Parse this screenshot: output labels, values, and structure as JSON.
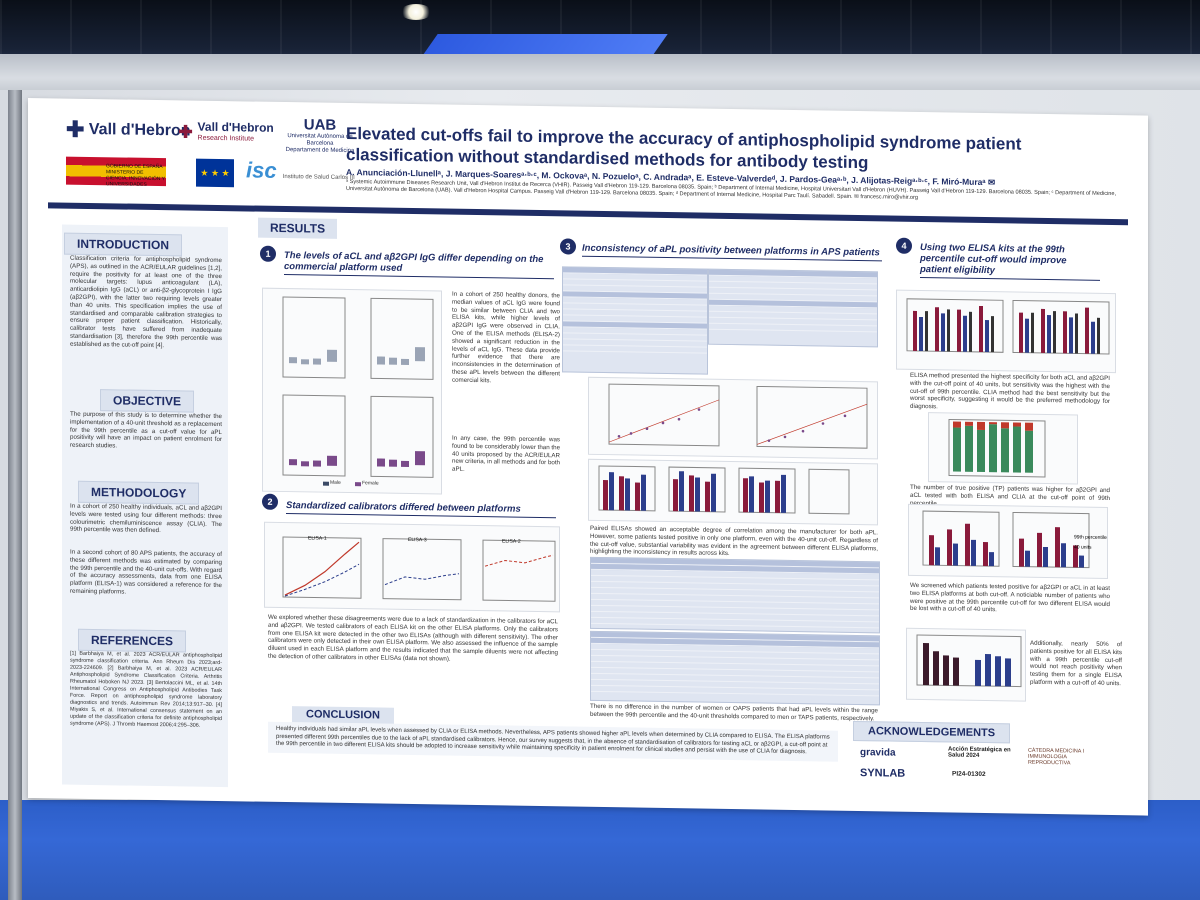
{
  "poster": {
    "title": "Elevated cut-offs fail to improve the accuracy of antiphospholipid syndrome patient classification without standardised methods for antibody testing",
    "authors": "A. Anunciación-Llunellᵃ, J. Marques-Soaresᵃ·ᵇ·ᶜ, M. Ockovaᵃ, N. Pozueloᵃ, C. Andradaᵃ, E. Esteve-Valverdeᵈ, J. Pardos-Geaᵃ·ᵇ, J. Alijotas-Reigᵃ·ᵇ·ᶜ, F. Miró-Muraᵃ ✉",
    "affiliations": "ᵃ Systemic Autoimmune Diseases Research Unit, Vall d'Hebron Institut de Recerca (VHIR). Passeig Vall d'Hebron 119-129. Barcelona 08035. Spain; ᵇ Department of Internal Medicine, Hospital Universitari Vall d'Hebron (HUVH). Passeig Vall d'Hebron 119-129. Barcelona 08035. Spain; ᶜ Department of Medicine, Universitat Autònoma de Barcelona (UAB). Vall d'Hebron Hospital Campus. Passeig Vall d'Hebron 119-129. Barcelona 08035. Spain; ᵈ Department of Internal Medicine, Hospital Parc Taulí. Sabadell. Spain. ✉ francesc.miro@vhir.org",
    "logos": {
      "vall_hebron": "Vall d'Hebron",
      "vall_hebron_ri": "Vall d'Hebron",
      "vall_hebron_ri_sub": "Research Institute",
      "uab": "UAB",
      "uab_sub": "Universitat Autònoma de Barcelona",
      "uab_dept": "Departament de Medicina",
      "gob": "GOBIERNO DE ESPAÑA  MINISTERIO DE CIENCIA, INNOVACIÓN Y UNIVERSIDADES",
      "isc": "isc",
      "isc_sub": "Instituto de Salud Carlos III"
    },
    "sections": {
      "introduction": {
        "label": "INTRODUCTION",
        "text": "Classification criteria for antiphospholipid syndrome (APS), as outlined in the ACR/EULAR guidelines [1,2], require the positivity for at least one of the three molecular targets: lupus anticoagulant (LA), anticardiolipin IgG (aCL) or anti-β2-glycoprotein I IgG (aβ2GPI), with the latter two requiring levels greater than 40 units. This specification implies the use of standardised and comparable calibration strategies to ensure proper patient classification. Historically, calibrator tests have suffered from inadequate standardisation [3], therefore the 99th percentile was established as the cut-off point [4]."
      },
      "objective": {
        "label": "OBJECTIVE",
        "text": "The purpose of this study is to determine whether the implementation of a 40-unit threshold as a replacement for the 99th percentile as a cut-off value for aPL positivity will have an impact on patient enrolment for research studies."
      },
      "methodology": {
        "label": "METHODOLOGY",
        "text1": "In a cohort of 250 healthy individuals, aCL and aβ2GPI levels were tested using four different methods: three colourimetric chemiluminiscence assay (CLIA). The 99th percentile was then defined.",
        "text2": "In a second cohort of 80 APS patients, the accuracy of these different methods was estimated by comparing the 99th percentile and the 40-unit cut-offs. With regard of the accuracy assessments, data from one ELISA platform (ELISA-1) was considered a reference for the remaining platforms."
      },
      "references": {
        "label": "REFERENCES",
        "text": "[1] Barbhaiya M, et al. 2023 ACR/EULAR antiphospholipid syndrome classification criteria. Ann Rheum Dis 2023;ard-2023-224609. [2] Barbhaiya M, et al. 2023 ACR/EULAR Antiphospholipid Syndrome Classification Criteria. Arthritis Rheumatol Hoboken NJ 2023. [3] Bertolaccini ML, et al. 14th International Congress on Antiphospholipid Antibodies Task Force. Report on antiphospholipid syndrome laboratory diagnostics and trends. Autoimmun Rev 2014;13:917–30. [4] Miyakis S, et al. International consensus statement on an update of the classification criteria for definite antiphospholipid syndrome (APS). J Thromb Haemost 2006;4:295–306."
      },
      "results": {
        "label": "RESULTS"
      },
      "r1": {
        "num": "1",
        "title": "The levels of aCL and aβ2GPI IgG differ depending on the commercial platform used",
        "text1": "In a cohort of 250 healthy donors, the median values of aCL IgG were found to be similar between CLIA and two ELISA kits, while higher levels of aβ2GPI IgG were observed in CLIA. One of the ELISA methods (ELISA-2) showed a significant reduction in the levels of aCL IgG. These data provide further evidence that there are inconsistencies in the determination of these aPL levels between the different comercial kits.",
        "text2": "In any case, the 99th percentile was found to be considerably lower than the 40 units proposed by the ACR/EULAR new criteria, in all methods and for both aPL.",
        "legend_male": "Male",
        "legend_female": "Female"
      },
      "r2": {
        "num": "2",
        "title": "Standardized calibrators differed between platforms",
        "text": "We explored whether these disagreements were due to a lack of standardization in the calibrators for aCL and aβ2GPI. We tested calibrators of each ELISA kit on the other ELISA platforms. Only the calibrators from one ELISA kit were detected in the other two ELISAs (although with different sensitivity). The other calibrators were only detected in their own ELISA platform. We also assessed the influence of the sample diluent used in each ELISA platform and the results indicated that the sample diluents were not affecting the detection of other calibrators in other ELISAs (data not shown).",
        "chart1": "ELISA-1",
        "chart2": "ELISA-3",
        "chart3": "ELISA-2"
      },
      "r3": {
        "num": "3",
        "title": "Inconsistency of aPL positivity between platforms in APS patients",
        "text1": "Paired ELISAs showed an acceptable degree of correlation among the manufacturer for both aPL. However, some patients tested positive in only one platform, even with the 40-unit cut-off. Regardless of the cut-off value, substantial variability was evident in the agreement between different ELISA platforms, highlighting the inconsistency in results across kits.",
        "text2": "There is no difference in the number of women or OAPS patients that had aPL levels within the range between the 99th percentile and the 40-unit thresholds compared to men or TAPS patients, respectively."
      },
      "r4": {
        "num": "4",
        "title": "Using two ELISA kits at the 99th percentile cut-off would improve patient eligibility",
        "text1": "ELISA method presented the highest specificity for both aCL and aβ2GPI with the cut-off point of 40 units, but sensitivity was the highest with the cut-off of 99th percentile. CLIA method had the best sensitivity but the worst specificity, suggesting it would be the preferred methodology for diagnosis.",
        "text2": "The number of true positive (TP) patients was higher for aβ2GPI and aCL tested with both ELISA and CLIA at the cut-off point of 99th percentile.",
        "text3": "We screened which patients tested positive for aβ2GPI or aCL in at least two ELISA platforms at both cut-off. A noticiable number of patients who were positive at the 99th percentile cut-off for two different ELISA would be lost with a cut-off of 40 units.",
        "text4": "Additionally, nearly 50% of patients positive for all ELISA kits with a 99th percentile cut-off would not reach positivity when testing them for a single ELISA platform with a cut-off of 40 units.",
        "legend1": "99th percentile",
        "legend2": "40 units"
      },
      "conclusion": {
        "label": "CONCLUSION",
        "text": "Healthy individuals had similar aPL levels when assessed by CLIA or ELISA methods. Nevertheless, APS patients showed higher aPL levels when determined by CLIA compared to ELISA. The ELISA platforms presented different 99th percentiles due to the lack of aPL standardised calibrators. Hence, our survey suggests that, in the absence of standardisation of calibrators for testing aCL or aβ2GPI, a cut-off point at the 99th percentile in two different ELISA kits should be adopted to increase sensitivity while maintaining specificity in patient enrolment for clinical studies and persist with the use of CLIA for diagnosis."
      },
      "acknowledgements": {
        "label": "ACKNOWLEDGEMENTS",
        "gravida": "gravida",
        "synlab": "SYNLAB",
        "accion": "Acción Estratégica en Salud 2024",
        "code": "PI24-01302",
        "catedra": "CÀTEDRA MEDICINA I IMMUNOLOGIA REPRODUCTIVA"
      }
    }
  }
}
